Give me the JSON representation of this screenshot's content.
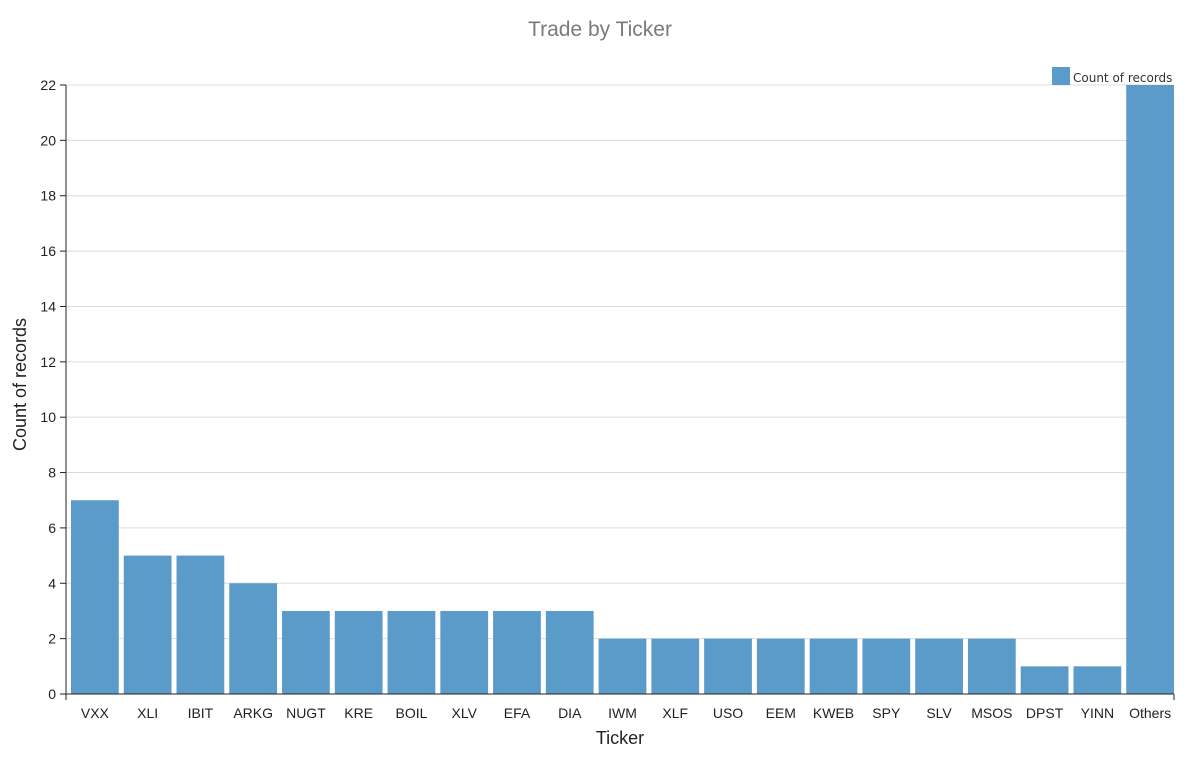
{
  "chart_data": {
    "type": "bar",
    "title": "Trade by Ticker",
    "xlabel": "Ticker",
    "ylabel": "Count of records",
    "categories": [
      "VXX",
      "XLI",
      "IBIT",
      "ARKG",
      "NUGT",
      "KRE",
      "BOIL",
      "XLV",
      "EFA",
      "DIA",
      "IWM",
      "XLF",
      "USO",
      "EEM",
      "KWEB",
      "SPY",
      "SLV",
      "MSOS",
      "DPST",
      "YINN",
      "Others"
    ],
    "series": [
      {
        "name": "Count of records",
        "values": [
          7,
          5,
          5,
          4,
          3,
          3,
          3,
          3,
          3,
          3,
          2,
          2,
          2,
          2,
          2,
          2,
          2,
          2,
          1,
          1,
          22
        ]
      }
    ],
    "ylim": [
      0,
      22
    ],
    "yticks": [
      0,
      2,
      4,
      6,
      8,
      10,
      12,
      14,
      16,
      18,
      20,
      22
    ],
    "grid": true,
    "legend_position": "top-right",
    "colors": {
      "bar": "#5b9bc9",
      "grid": "#dcdcdc",
      "axis": "#222222",
      "title": "#7a7a7a"
    }
  }
}
